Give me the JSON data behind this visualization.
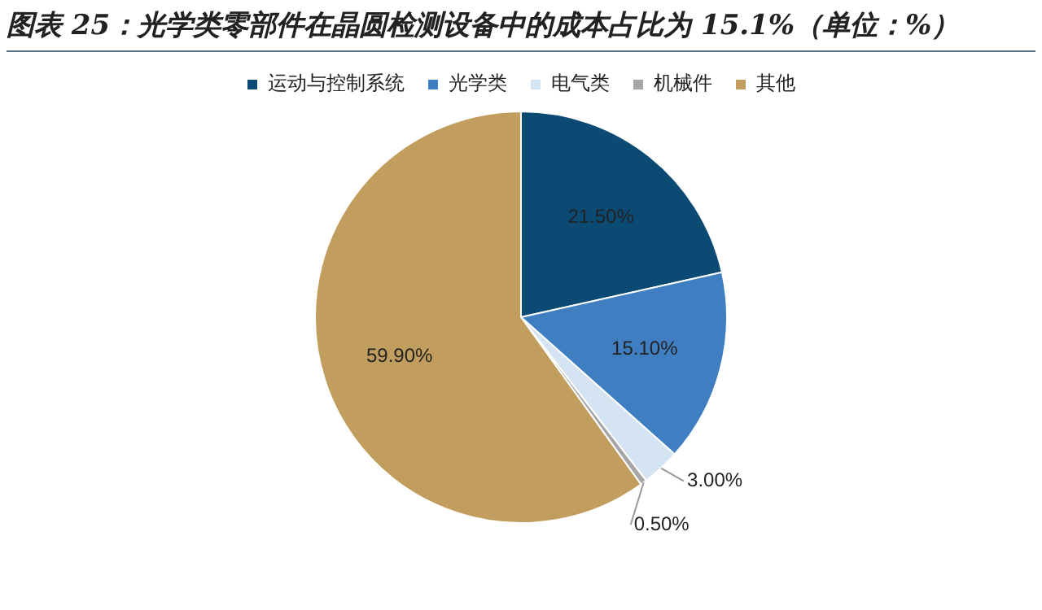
{
  "chart_data": {
    "type": "pie",
    "title": "图表 25：光学类零部件在晶圆检测设备中的成本占比为 15.1%（单位：%）",
    "categories": [
      "运动与控制系统",
      "光学类",
      "电气类",
      "机械件",
      "其他"
    ],
    "values": [
      21.5,
      15.1,
      3.0,
      0.5,
      59.9
    ],
    "colors": [
      "#0b4a72",
      "#3f7fc1",
      "#d5e4f2",
      "#a6a6a6",
      "#c29e5e"
    ],
    "value_labels": [
      "21.50%",
      "15.10%",
      "3.00%",
      "0.50%",
      "59.90%"
    ],
    "legend": "top"
  }
}
